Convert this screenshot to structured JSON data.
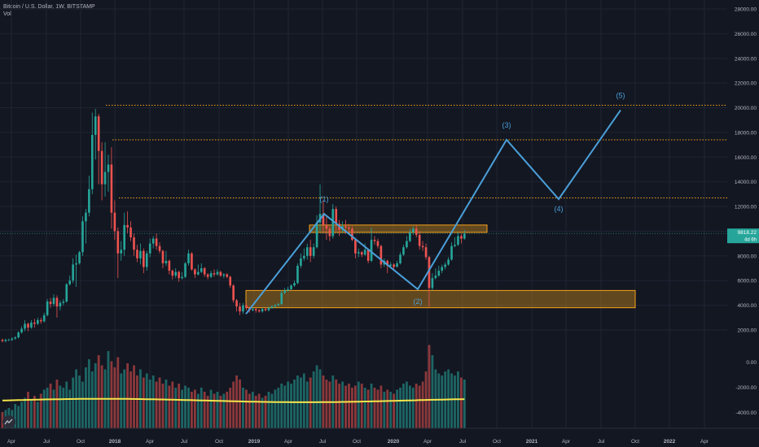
{
  "header": {
    "title": "Bitcoin / U.S. Dollar, 1W, BITSTAMP",
    "sub": "Vol"
  },
  "colors": {
    "bg": "#131722",
    "grid": "#1f2433",
    "up": "#26a69a",
    "down": "#ef5350",
    "wave": "#4a9fd8",
    "zone": "#f7a21b",
    "ma": "#f5e44b",
    "axis_text": "#b2b5be"
  },
  "chart_data": {
    "type": "candlestick",
    "price_axis": {
      "ticks": [
        "28000.00",
        "26000.00",
        "24000.00",
        "22000.00",
        "20000.00",
        "18000.00",
        "16000.00",
        "14000.00",
        "12000.00",
        "10000.00",
        "8000.00",
        "6000.00",
        "4000.00",
        "2000.00"
      ],
      "last_price": "9818.22",
      "last_price_value": 9818.22,
      "countdown": "4d 6h"
    },
    "volume_axis": {
      "ticks": [
        "0.00",
        "-2000.00",
        "-4000.00"
      ]
    },
    "time_axis": [
      "Apr",
      "Jul",
      "Oct",
      "2018",
      "Apr",
      "Jul",
      "Oct",
      "2019",
      "Apr",
      "Jul",
      "Oct",
      "2020",
      "Apr",
      "Jul",
      "Oct",
      "2021",
      "Apr",
      "Jul",
      "Oct",
      "2022",
      "Apr"
    ],
    "candles": [
      [
        1.2,
        1.1,
        1.3,
        1.0
      ],
      [
        1.1,
        1.2,
        1.3,
        1.0
      ],
      [
        1.2,
        1.2,
        1.3,
        1.1
      ],
      [
        1.2,
        1.3,
        1.4,
        1.1
      ],
      [
        1.3,
        1.4,
        1.5,
        1.2
      ],
      [
        1.4,
        1.8,
        1.9,
        1.3
      ],
      [
        1.8,
        2.1,
        2.3,
        1.7
      ],
      [
        2.1,
        2.5,
        2.8,
        1.9
      ],
      [
        2.5,
        2.2,
        2.6,
        1.9
      ],
      [
        2.2,
        2.6,
        2.8,
        2.1
      ],
      [
        2.6,
        2.5,
        2.9,
        2.2
      ],
      [
        2.5,
        2.8,
        3.0,
        2.4
      ],
      [
        2.8,
        2.7,
        3.0,
        2.5
      ],
      [
        2.7,
        3.2,
        3.4,
        2.6
      ],
      [
        3.2,
        4.3,
        4.5,
        3.1
      ],
      [
        4.3,
        4.1,
        4.6,
        3.8
      ],
      [
        4.1,
        4.6,
        4.9,
        3.9
      ],
      [
        4.6,
        3.9,
        4.8,
        3.0
      ],
      [
        3.9,
        4.2,
        4.4,
        3.6
      ],
      [
        4.2,
        4.3,
        4.5,
        4.0
      ],
      [
        4.3,
        5.7,
        5.8,
        4.2
      ],
      [
        5.7,
        6.0,
        6.4,
        5.6
      ],
      [
        6.0,
        7.3,
        7.8,
        5.8
      ],
      [
        7.3,
        7.4,
        8.1,
        5.5
      ],
      [
        7.4,
        8.3,
        8.4,
        7.3
      ],
      [
        8.3,
        10.8,
        11.2,
        8.0
      ],
      [
        10.8,
        11.5,
        11.8,
        9.0
      ],
      [
        11.5,
        13.4,
        14.5,
        11.2
      ],
      [
        13.4,
        17.8,
        19.6,
        13.0
      ],
      [
        17.8,
        19.3,
        19.9,
        15.8
      ],
      [
        19.3,
        16.5,
        19.5,
        13.8
      ],
      [
        16.5,
        13.8,
        17.2,
        12.5
      ],
      [
        13.8,
        14.8,
        17.2,
        12.8
      ],
      [
        14.8,
        15.4,
        16.2,
        13.2
      ],
      [
        15.4,
        11.5,
        16.8,
        10.2
      ],
      [
        11.5,
        10.0,
        12.5,
        9.3
      ],
      [
        10.0,
        8.2,
        10.3,
        6.2
      ],
      [
        8.2,
        8.5,
        9.2,
        7.6
      ],
      [
        8.5,
        10.5,
        11.5,
        8.0
      ],
      [
        10.5,
        10.3,
        11.6,
        9.8
      ],
      [
        10.3,
        9.5,
        10.8,
        9.2
      ],
      [
        9.5,
        8.5,
        9.8,
        8.0
      ],
      [
        8.5,
        7.8,
        8.9,
        7.5
      ],
      [
        7.8,
        8.4,
        9.0,
        7.3
      ],
      [
        8.4,
        7.1,
        8.6,
        6.6
      ],
      [
        7.1,
        8.2,
        8.4,
        6.8
      ],
      [
        8.2,
        9.0,
        9.4,
        7.9
      ],
      [
        9.0,
        9.4,
        9.6,
        8.6
      ],
      [
        9.4,
        8.8,
        9.8,
        8.5
      ],
      [
        8.8,
        8.4,
        9.1,
        8.2
      ],
      [
        8.4,
        7.4,
        8.5,
        7.0
      ],
      [
        7.4,
        7.6,
        8.4,
        7.2
      ],
      [
        7.6,
        6.8,
        7.7,
        6.5
      ],
      [
        6.8,
        6.4,
        6.9,
        6.1
      ],
      [
        6.4,
        6.7,
        7.0,
        6.2
      ],
      [
        6.7,
        6.2,
        6.8,
        5.9
      ],
      [
        6.2,
        6.3,
        6.7,
        6.1
      ],
      [
        6.3,
        7.4,
        7.5,
        6.2
      ],
      [
        7.4,
        8.2,
        8.5,
        7.2
      ],
      [
        8.2,
        6.9,
        8.3,
        6.8
      ],
      [
        6.9,
        6.5,
        7.0,
        6.2
      ],
      [
        6.5,
        6.7,
        7.3,
        6.4
      ],
      [
        6.7,
        7.0,
        7.4,
        6.6
      ],
      [
        7.0,
        6.5,
        7.1,
        6.3
      ],
      [
        6.5,
        6.3,
        6.6,
        6.1
      ],
      [
        6.3,
        6.6,
        6.8,
        6.2
      ],
      [
        6.6,
        6.5,
        6.9,
        6.3
      ],
      [
        6.5,
        6.7,
        6.9,
        6.4
      ],
      [
        6.7,
        6.4,
        6.8,
        6.3
      ],
      [
        6.4,
        6.5,
        6.6,
        6.2
      ],
      [
        6.5,
        6.3,
        6.6,
        6.2
      ],
      [
        6.3,
        5.6,
        6.4,
        5.4
      ],
      [
        5.6,
        4.4,
        5.7,
        4.2
      ],
      [
        4.4,
        3.9,
        4.5,
        3.5
      ],
      [
        3.9,
        3.5,
        4.2,
        3.2
      ],
      [
        3.5,
        4.0,
        4.2,
        3.3
      ],
      [
        4.0,
        3.8,
        4.2,
        3.6
      ],
      [
        3.8,
        3.6,
        3.9,
        3.4
      ],
      [
        3.6,
        3.7,
        3.8,
        3.5
      ],
      [
        3.7,
        3.6,
        3.8,
        3.4
      ],
      [
        3.6,
        3.5,
        3.7,
        3.4
      ],
      [
        3.5,
        3.7,
        3.8,
        3.4
      ],
      [
        3.7,
        3.6,
        3.8,
        3.5
      ],
      [
        3.6,
        3.8,
        3.9,
        3.5
      ],
      [
        3.8,
        3.9,
        4.0,
        3.7
      ],
      [
        3.9,
        4.0,
        4.1,
        3.8
      ],
      [
        4.0,
        4.1,
        4.2,
        3.9
      ],
      [
        4.1,
        5.0,
        5.2,
        4.0
      ],
      [
        5.0,
        5.2,
        5.4,
        4.9
      ],
      [
        5.2,
        5.3,
        5.5,
        5.1
      ],
      [
        5.3,
        5.6,
        5.7,
        5.2
      ],
      [
        5.6,
        5.8,
        6.0,
        5.5
      ],
      [
        5.8,
        7.2,
        7.4,
        5.7
      ],
      [
        7.2,
        7.8,
        8.2,
        7.0
      ],
      [
        7.8,
        8.0,
        8.6,
        7.6
      ],
      [
        8.0,
        8.7,
        9.0,
        7.7
      ],
      [
        8.7,
        8.0,
        9.3,
        7.5
      ],
      [
        8.0,
        8.7,
        9.0,
        7.8
      ],
      [
        8.7,
        10.7,
        11.3,
        8.6
      ],
      [
        10.7,
        11.4,
        13.8,
        10.0
      ],
      [
        11.4,
        10.5,
        12.5,
        9.8
      ],
      [
        10.5,
        10.2,
        11.3,
        9.3
      ],
      [
        10.2,
        9.6,
        10.4,
        9.2
      ],
      [
        9.6,
        11.8,
        12.2,
        9.4
      ],
      [
        11.8,
        10.6,
        12.0,
        10.0
      ],
      [
        10.6,
        10.1,
        10.9,
        9.6
      ],
      [
        10.1,
        10.4,
        10.8,
        9.9
      ],
      [
        10.4,
        10.3,
        10.9,
        9.8
      ],
      [
        10.3,
        10.2,
        10.6,
        9.8
      ],
      [
        10.2,
        9.3,
        10.4,
        9.2
      ],
      [
        9.3,
        8.2,
        9.4,
        7.8
      ],
      [
        8.2,
        8.3,
        8.6,
        7.9
      ],
      [
        8.3,
        8.1,
        8.4,
        7.9
      ],
      [
        8.1,
        8.5,
        9.0,
        8.0
      ],
      [
        8.5,
        7.6,
        8.6,
        7.4
      ],
      [
        7.6,
        9.3,
        10.3,
        7.5
      ],
      [
        9.3,
        9.2,
        9.6,
        8.9
      ],
      [
        9.2,
        8.8,
        9.4,
        8.6
      ],
      [
        8.8,
        7.3,
        8.9,
        7.0
      ],
      [
        7.3,
        7.6,
        7.8,
        7.1
      ],
      [
        7.6,
        7.2,
        7.7,
        6.6
      ],
      [
        7.2,
        7.3,
        7.5,
        7.0
      ],
      [
        7.3,
        7.1,
        7.4,
        6.9
      ],
      [
        7.1,
        7.4,
        7.6,
        7.1
      ],
      [
        7.4,
        8.1,
        8.3,
        7.3
      ],
      [
        8.1,
        8.7,
        8.9,
        8.0
      ],
      [
        8.7,
        9.2,
        9.6,
        8.6
      ],
      [
        9.2,
        9.9,
        10.2,
        9.1
      ],
      [
        9.9,
        10.2,
        10.4,
        9.7
      ],
      [
        10.2,
        9.7,
        10.5,
        9.5
      ],
      [
        9.7,
        8.8,
        10.0,
        8.5
      ],
      [
        8.8,
        8.7,
        9.2,
        8.4
      ],
      [
        8.7,
        7.9,
        9.0,
        7.7
      ],
      [
        7.9,
        5.4,
        8.0,
        3.9
      ],
      [
        5.4,
        6.2,
        6.6,
        5.2
      ],
      [
        6.2,
        6.4,
        7.0,
        6.1
      ],
      [
        6.4,
        6.8,
        7.2,
        6.3
      ],
      [
        6.8,
        7.1,
        7.3,
        6.6
      ],
      [
        7.1,
        7.3,
        7.5,
        6.9
      ],
      [
        7.3,
        7.7,
        7.9,
        7.2
      ],
      [
        7.7,
        8.8,
        9.1,
        7.6
      ],
      [
        8.8,
        8.9,
        9.5,
        8.7
      ],
      [
        8.9,
        9.6,
        9.9,
        8.8
      ],
      [
        9.6,
        9.4,
        9.8,
        9.0
      ],
      [
        9.4,
        9.8,
        10.1,
        9.3
      ]
    ],
    "volume_values": [
      0.8,
      0.9,
      1.0,
      0.9,
      1.2,
      1.1,
      1.3,
      1.5,
      1.8,
      1.4,
      1.6,
      1.3,
      1.7,
      1.9,
      2.0,
      2.2,
      1.9,
      2.4,
      2.1,
      2.0,
      2.3,
      1.9,
      2.5,
      2.9,
      2.6,
      2.3,
      3.0,
      3.4,
      2.8,
      3.2,
      3.6,
      3.1,
      2.9,
      3.8,
      3.3,
      3.0,
      3.5,
      2.7,
      2.9,
      3.2,
      2.8,
      3.1,
      2.6,
      2.9,
      2.5,
      2.7,
      2.4,
      2.6,
      2.3,
      2.5,
      2.2,
      2.4,
      2.1,
      2.3,
      2.0,
      2.2,
      1.9,
      2.1,
      2.0,
      1.8,
      1.9,
      1.7,
      2.0,
      1.8,
      1.6,
      1.9,
      1.7,
      1.8,
      1.6,
      1.7,
      1.8,
      2.0,
      2.3,
      2.6,
      2.4,
      2.0,
      1.9,
      1.7,
      1.8,
      1.6,
      1.7,
      1.5,
      1.6,
      1.8,
      1.7,
      1.9,
      2.0,
      2.2,
      2.1,
      2.3,
      2.2,
      2.4,
      2.6,
      2.5,
      2.7,
      2.3,
      2.5,
      2.8,
      3.1,
      2.9,
      2.6,
      2.4,
      2.3,
      2.6,
      2.4,
      2.2,
      2.3,
      2.1,
      2.2,
      2.0,
      2.1,
      2.3,
      2.2,
      2.0,
      1.9,
      2.2,
      2.0,
      1.9,
      2.1,
      1.8,
      1.9,
      1.8,
      1.7,
      1.9,
      2.0,
      2.2,
      2.3,
      2.1,
      2.0,
      2.2,
      2.1,
      2.3,
      2.8,
      4.1,
      3.6,
      2.9,
      2.7,
      2.6,
      2.8,
      2.9,
      2.7,
      2.6,
      2.8,
      2.5,
      2.4
    ],
    "moving_average": 2.3,
    "resistance_lines": [
      20200,
      17400,
      12700
    ],
    "zones": [
      {
        "name": "upper-zone",
        "x_start": 76,
        "x_end": 96,
        "low": 9900,
        "high": 10500
      },
      {
        "name": "lower-zone",
        "x_start": 57,
        "x_end": 96,
        "low": 3800,
        "high": 5200
      }
    ],
    "wave_path": [
      [
        57,
        3300
      ],
      [
        81,
        11400
      ],
      [
        105,
        5300
      ],
      [
        144,
        17400
      ],
      [
        160,
        12600
      ],
      [
        176,
        19800
      ]
    ],
    "wave_labels": [
      {
        "text": "(1)",
        "x": 81,
        "y": 12400
      },
      {
        "text": "(2)",
        "x": 105,
        "y": 4100
      },
      {
        "text": "(3)",
        "x": 144,
        "y": 18400
      },
      {
        "text": "(4)",
        "x": 160,
        "y": 11600
      },
      {
        "text": "(5)",
        "x": 176,
        "y": 20800
      }
    ]
  }
}
